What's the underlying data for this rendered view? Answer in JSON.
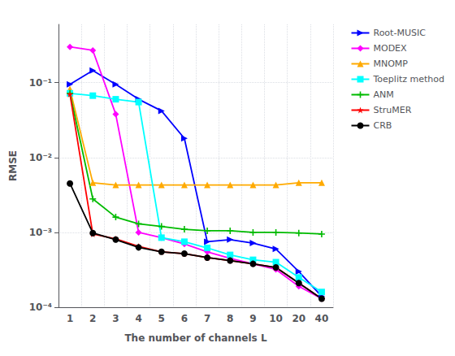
{
  "chart_data": {
    "type": "line",
    "xlabel": "The number of channels L",
    "ylabel": "RMSE",
    "categories": [
      "1",
      "2",
      "3",
      "4",
      "5",
      "6",
      "7",
      "8",
      "9",
      "10",
      "20",
      "40"
    ],
    "series": [
      {
        "name": "Root-MUSIC",
        "color": "#0000ff",
        "marker": "triangle-right",
        "values": [
          0.095,
          0.145,
          0.095,
          0.06,
          0.042,
          0.018,
          0.00075,
          0.0008,
          0.00072,
          0.0006,
          0.0003,
          0.00014
        ]
      },
      {
        "name": "MODEX",
        "color": "#ff00ff",
        "marker": "diamond",
        "values": [
          0.3,
          0.27,
          0.038,
          0.001,
          0.00085,
          0.0007,
          0.00055,
          0.00045,
          0.00038,
          0.00032,
          0.00019,
          0.00013
        ]
      },
      {
        "name": "MNOMP",
        "color": "#ffaa00",
        "marker": "triangle",
        "values": [
          0.082,
          0.0046,
          0.0043,
          0.0043,
          0.0043,
          0.0043,
          0.0043,
          0.0043,
          0.0043,
          0.0043,
          0.0046,
          0.0046
        ]
      },
      {
        "name": "Toeplitz method",
        "color": "#00ffff",
        "marker": "square",
        "values": [
          0.072,
          0.067,
          0.06,
          0.055,
          0.00085,
          0.00075,
          0.00062,
          0.0005,
          0.00043,
          0.0004,
          0.00025,
          0.00016
        ]
      },
      {
        "name": "ANM",
        "color": "#00bb00",
        "marker": "plus",
        "values": [
          0.072,
          0.0028,
          0.0016,
          0.0013,
          0.0012,
          0.0011,
          0.00105,
          0.00105,
          0.001,
          0.001,
          0.00098,
          0.00095
        ]
      },
      {
        "name": "StruMER",
        "color": "#ff0000",
        "marker": "star",
        "values": [
          0.07,
          0.00095,
          0.00082,
          0.00065,
          0.00055,
          0.00052,
          0.00046,
          0.00042,
          0.00038,
          0.00034,
          0.00021,
          0.00013
        ]
      },
      {
        "name": "CRB",
        "color": "#000000",
        "marker": "circle",
        "values": [
          0.0045,
          0.00098,
          0.0008,
          0.00063,
          0.00055,
          0.00052,
          0.00046,
          0.00042,
          0.00038,
          0.00034,
          0.00021,
          0.00013
        ]
      }
    ],
    "log": "y",
    "ylim": [
      0.0001,
      0.6
    ],
    "yticks": [
      {
        "value": 0.0001,
        "label": "10⁻⁴"
      },
      {
        "value": 0.001,
        "label": "10⁻³"
      },
      {
        "value": 0.01,
        "label": "10⁻²"
      },
      {
        "value": 0.1,
        "label": "10⁻¹"
      }
    ],
    "grid": true,
    "legend": "upper right"
  }
}
